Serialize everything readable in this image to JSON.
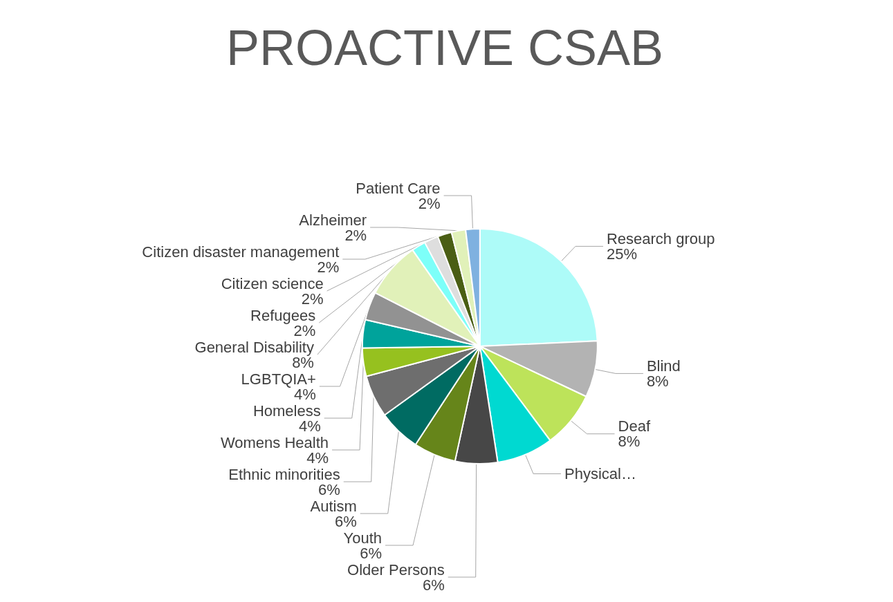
{
  "chart_data": {
    "type": "pie",
    "title": "PROACTIVE CSAB",
    "categories": [
      "Research group",
      "Blind",
      "Deaf",
      "Physical…",
      "Older Persons",
      "Youth",
      "Autism",
      "Ethnic minorities",
      "Womens Health",
      "Homeless",
      "LGBTQIA+",
      "General Disability",
      "Refugees",
      "Citizen science",
      "Citizen disaster management",
      "Alzheimer",
      "Patient Care"
    ],
    "values": [
      25,
      8,
      8,
      8,
      6,
      6,
      6,
      6,
      4,
      4,
      4,
      8,
      2,
      2,
      2,
      2,
      2
    ],
    "value_labels": [
      "25%",
      "8%",
      "8%",
      null,
      "6%",
      "6%",
      "6%",
      "6%",
      "4%",
      "4%",
      "4%",
      "8%",
      "2%",
      "2%",
      "2%",
      "2%",
      "2%"
    ],
    "colors": [
      "#adfbf8",
      "#b3b3b3",
      "#bde35a",
      "#00d9d1",
      "#474747",
      "#66851a",
      "#006b62",
      "#6e6e6e",
      "#96c11f",
      "#00a39b",
      "#929292",
      "#e1f1b9",
      "#7dfff9",
      "#dedede",
      "#4a5e14",
      "#e1f1b9",
      "#7fb1e0"
    ],
    "legend": false
  }
}
